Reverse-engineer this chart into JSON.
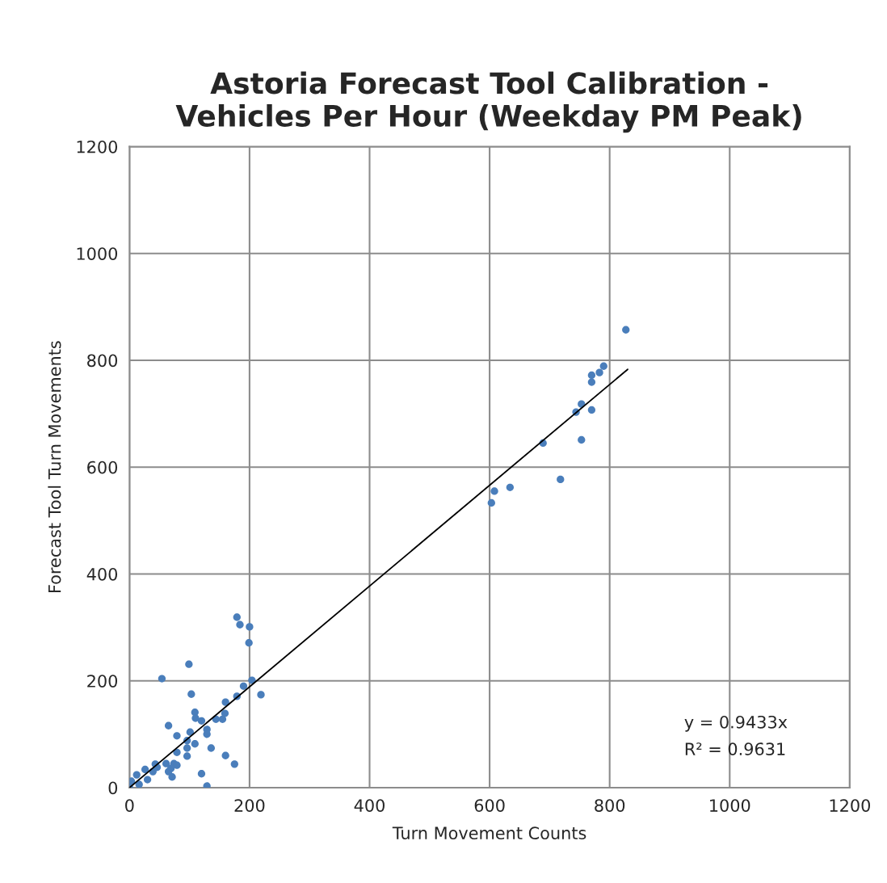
{
  "chart_data": {
    "type": "scatter",
    "title": "Astoria Forecast Tool Calibration -\nVehicles Per Hour (Weekday PM Peak)",
    "xlabel": "Turn Movement Counts",
    "ylabel": "Forecast Tool Turn Movements",
    "xlim": [
      0,
      1200
    ],
    "ylim": [
      0,
      1200
    ],
    "xticks": [
      0,
      200,
      400,
      600,
      800,
      1000,
      1200
    ],
    "yticks": [
      0,
      200,
      400,
      600,
      800,
      1000,
      1200
    ],
    "grid": true,
    "marker": "circle",
    "annotations": [
      "y = 0.9433x",
      "R² = 0.9631"
    ],
    "series": [
      {
        "color": "#4a7ebb",
        "x": [
          827,
          790,
          783,
          770,
          770,
          753,
          744,
          770,
          753,
          689,
          718,
          634,
          608,
          603,
          179,
          184,
          200,
          199,
          99,
          54,
          204,
          219,
          190,
          103,
          179,
          160,
          109,
          110,
          159,
          120,
          155,
          144,
          65,
          129,
          129,
          101,
          79,
          96,
          109,
          136,
          96,
          79,
          96,
          160,
          175,
          120,
          129,
          61,
          74,
          79,
          43,
          71,
          69,
          65,
          46,
          39,
          26,
          12,
          30,
          16,
          3,
          0
        ],
        "values": [
          857,
          789,
          777,
          772,
          759,
          718,
          703,
          707,
          651,
          645,
          577,
          562,
          555,
          533,
          319,
          305,
          301,
          271,
          231,
          204,
          201,
          174,
          190,
          175,
          171,
          160,
          141,
          130,
          139,
          125,
          128,
          128,
          116,
          109,
          100,
          104,
          97,
          88,
          82,
          74,
          74,
          66,
          59,
          60,
          44,
          26,
          3,
          45,
          45,
          42,
          44,
          20,
          36,
          30,
          38,
          30,
          34,
          24,
          15,
          6,
          12,
          0
        ]
      },
      {
        "type": "line",
        "color": "#000000",
        "marker": "none",
        "x": [
          0,
          830
        ],
        "values": [
          0,
          783
        ]
      }
    ]
  }
}
